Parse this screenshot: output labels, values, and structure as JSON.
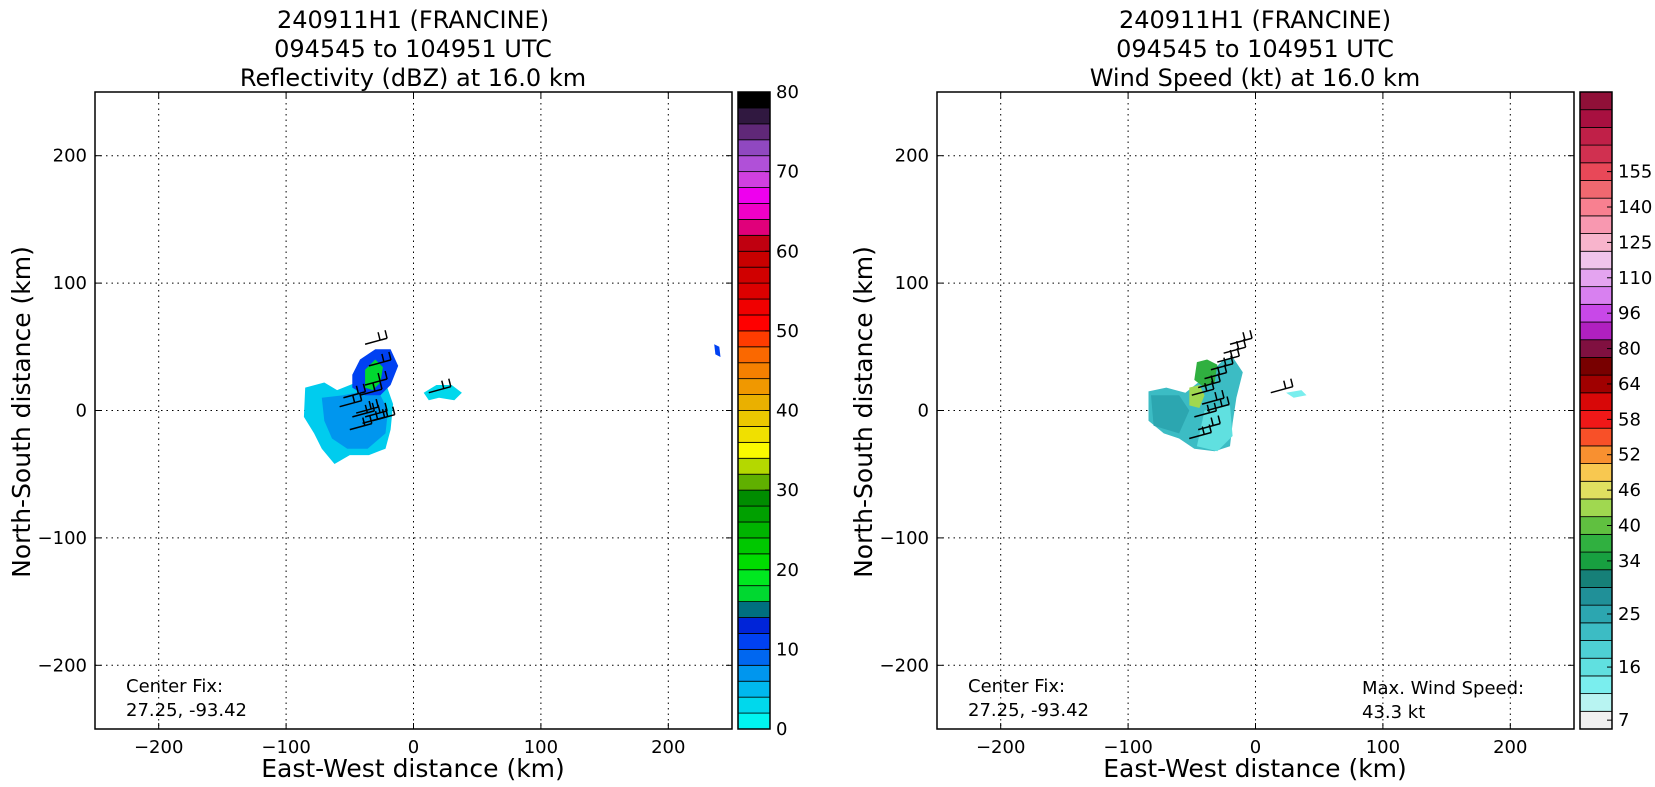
{
  "chart_data": [
    {
      "type": "heatmap",
      "title": [
        "240911H1 (FRANCINE)",
        "094545 to 104951 UTC",
        "Reflectivity (dBZ) at 16.0 km"
      ],
      "xlabel": "East-West distance (km)",
      "ylabel": "North-South distance (km)",
      "xlim": [
        -250,
        250
      ],
      "ylim": [
        -250,
        250
      ],
      "xticks": [
        -200,
        -100,
        0,
        100,
        200
      ],
      "yticks": [
        -200,
        -100,
        0,
        100,
        200
      ],
      "xtick_labels": [
        "−200",
        "−100",
        "0",
        "100",
        "200"
      ],
      "ytick_labels": [
        "−200",
        "−100",
        "0",
        "100",
        "200"
      ],
      "grid": true,
      "center_fix": [
        "Center Fix:",
        "27.25, -93.42"
      ],
      "colorbar": {
        "min": 0,
        "max": 80,
        "ticks": [
          0,
          10,
          20,
          30,
          40,
          50,
          60,
          70,
          80
        ],
        "tick_labels": [
          "0",
          "10",
          "20",
          "30",
          "40",
          "50",
          "60",
          "70",
          "80"
        ],
        "colors": [
          "#00f5f0",
          "#00d8ec",
          "#00b8ee",
          "#0096ee",
          "#0067f0",
          "#0041f2",
          "#0024d8",
          "#006f7f",
          "#00d830",
          "#00e820",
          "#00dc00",
          "#00c800",
          "#00b400",
          "#00a000",
          "#008c00",
          "#60b000",
          "#b4d800",
          "#fafa00",
          "#f0e000",
          "#ecc800",
          "#eab000",
          "#f09800",
          "#f58000",
          "#fa6800",
          "#ff3c00",
          "#ff0000",
          "#f00000",
          "#dc0000",
          "#d00000",
          "#c80000",
          "#c00010",
          "#e0007a",
          "#f000c8",
          "#ee00ee",
          "#d040e0",
          "#b050d8",
          "#9048c0",
          "#602878",
          "#301840",
          "#000000"
        ]
      },
      "regions": [
        {
          "name": "main-echo-outer",
          "color": "#00ccee",
          "points": [
            [
              -85,
              18
            ],
            [
              -70,
              22
            ],
            [
              -60,
              16
            ],
            [
              -45,
              22
            ],
            [
              -30,
              28
            ],
            [
              -22,
              22
            ],
            [
              -16,
              5
            ],
            [
              -18,
              -15
            ],
            [
              -22,
              -30
            ],
            [
              -35,
              -35
            ],
            [
              -50,
              -35
            ],
            [
              -62,
              -42
            ],
            [
              -72,
              -30
            ],
            [
              -78,
              -18
            ],
            [
              -86,
              -5
            ]
          ]
        },
        {
          "name": "main-echo-inner",
          "color": "#0096ee",
          "points": [
            [
              -72,
              10
            ],
            [
              -55,
              12
            ],
            [
              -40,
              15
            ],
            [
              -26,
              12
            ],
            [
              -20,
              0
            ],
            [
              -22,
              -18
            ],
            [
              -36,
              -30
            ],
            [
              -52,
              -30
            ],
            [
              -64,
              -22
            ],
            [
              -70,
              -8
            ]
          ]
        },
        {
          "name": "northern-band",
          "color": "#0041f2",
          "points": [
            [
              -48,
              18
            ],
            [
              -48,
              28
            ],
            [
              -42,
              40
            ],
            [
              -30,
              48
            ],
            [
              -18,
              48
            ],
            [
              -12,
              35
            ],
            [
              -18,
              20
            ],
            [
              -26,
              12
            ],
            [
              -38,
              12
            ]
          ]
        },
        {
          "name": "northern-band-core",
          "color": "#00d830",
          "points": [
            [
              -38,
              18
            ],
            [
              -38,
              32
            ],
            [
              -30,
              40
            ],
            [
              -24,
              34
            ],
            [
              -26,
              22
            ],
            [
              -32,
              16
            ]
          ]
        },
        {
          "name": "eastern-echo",
          "color": "#00d8ec",
          "points": [
            [
              8,
              14
            ],
            [
              18,
              20
            ],
            [
              30,
              20
            ],
            [
              38,
              14
            ],
            [
              32,
              8
            ],
            [
              20,
              10
            ],
            [
              12,
              8
            ]
          ]
        },
        {
          "name": "far-east-echo",
          "color": "#0041f2",
          "points": [
            [
              236,
              52
            ],
            [
              240,
              50
            ],
            [
              241,
              42
            ],
            [
              237,
              44
            ]
          ]
        }
      ],
      "wind_barbs": [
        [
          -38,
          52
        ],
        [
          -35,
          35
        ],
        [
          -38,
          20
        ],
        [
          -42,
          12
        ],
        [
          -55,
          10
        ],
        [
          -58,
          3
        ],
        [
          -48,
          -5
        ],
        [
          -40,
          -10
        ],
        [
          -45,
          -2
        ],
        [
          -38,
          -5
        ],
        [
          -50,
          -15
        ],
        [
          -32,
          -8
        ],
        [
          12,
          14
        ]
      ]
    },
    {
      "type": "heatmap",
      "title": [
        "240911H1 (FRANCINE)",
        "094545 to 104951 UTC",
        "Wind Speed (kt) at 16.0 km"
      ],
      "xlabel": "East-West distance (km)",
      "ylabel": "North-South distance (km)",
      "xlim": [
        -250,
        250
      ],
      "ylim": [
        -250,
        250
      ],
      "xticks": [
        -200,
        -100,
        0,
        100,
        200
      ],
      "yticks": [
        -200,
        -100,
        0,
        100,
        200
      ],
      "xtick_labels": [
        "−200",
        "−100",
        "0",
        "100",
        "200"
      ],
      "ytick_labels": [
        "−200",
        "−100",
        "0",
        "100",
        "200"
      ],
      "grid": true,
      "center_fix": [
        "Center Fix:",
        "27.25, -93.42"
      ],
      "max_wind": [
        "Max. Wind Speed:",
        "43.3 kt"
      ],
      "colorbar": {
        "levels": [
          7,
          10,
          13,
          16,
          19,
          22,
          25,
          28,
          31,
          34,
          37,
          40,
          43,
          46,
          49,
          52,
          55,
          58,
          61,
          64,
          72,
          80,
          88,
          96,
          103,
          110,
          118,
          125,
          133,
          140,
          148,
          155,
          160
        ],
        "ticks": [
          7,
          16,
          25,
          34,
          40,
          46,
          52,
          58,
          64,
          80,
          96,
          110,
          125,
          140,
          155
        ],
        "tick_labels": [
          "7",
          "16",
          "25",
          "34",
          "40",
          "46",
          "52",
          "58",
          "64",
          "80",
          "96",
          "110",
          "125",
          "140",
          "155"
        ],
        "colors": [
          "#f0f0f0",
          "#b8f4f2",
          "#7aeeee",
          "#60e0e0",
          "#4ed0d4",
          "#3cbcc4",
          "#2ca6b0",
          "#209098",
          "#168078",
          "#18a040",
          "#30b040",
          "#60c040",
          "#a0d850",
          "#e0e060",
          "#f8c850",
          "#f89030",
          "#f85028",
          "#f01818",
          "#d80808",
          "#a00000",
          "#780000",
          "#801040",
          "#b020c0",
          "#c848e8",
          "#d880f0",
          "#e4a4f0",
          "#f0c4ec",
          "#f8b4cc",
          "#f898b0",
          "#f88090",
          "#f06870",
          "#e84858",
          "#d03050",
          "#c02048",
          "#a81040",
          "#901038"
        ]
      },
      "regions": [
        {
          "name": "main-wind-outer",
          "color": "#3cbcc4",
          "points": [
            [
              -84,
              15
            ],
            [
              -70,
              18
            ],
            [
              -55,
              14
            ],
            [
              -45,
              22
            ],
            [
              -35,
              30
            ],
            [
              -25,
              40
            ],
            [
              -18,
              42
            ],
            [
              -10,
              30
            ],
            [
              -15,
              10
            ],
            [
              -18,
              -10
            ],
            [
              -20,
              -28
            ],
            [
              -32,
              -32
            ],
            [
              -48,
              -30
            ],
            [
              -60,
              -22
            ],
            [
              -72,
              -18
            ],
            [
              -84,
              -8
            ]
          ]
        },
        {
          "name": "main-wind-light",
          "color": "#60e0e0",
          "points": [
            [
              -40,
              0
            ],
            [
              -20,
              4
            ],
            [
              -18,
              -20
            ],
            [
              -30,
              -32
            ],
            [
              -46,
              -28
            ]
          ]
        },
        {
          "name": "main-wind-dark",
          "color": "#2ca6b0",
          "points": [
            [
              -82,
              12
            ],
            [
              -60,
              12
            ],
            [
              -52,
              0
            ],
            [
              -60,
              -18
            ],
            [
              -80,
              -12
            ]
          ]
        },
        {
          "name": "core-green",
          "color": "#30b040",
          "points": [
            [
              -46,
              38
            ],
            [
              -38,
              40
            ],
            [
              -30,
              36
            ],
            [
              -32,
              22
            ],
            [
              -40,
              18
            ],
            [
              -48,
              24
            ]
          ]
        },
        {
          "name": "core-yellow",
          "color": "#a0d850",
          "points": [
            [
              -52,
              18
            ],
            [
              -44,
              20
            ],
            [
              -40,
              12
            ],
            [
              -44,
              2
            ],
            [
              -52,
              4
            ]
          ]
        },
        {
          "name": "eastern-wind",
          "color": "#7aeeee",
          "points": [
            [
              24,
              14
            ],
            [
              36,
              16
            ],
            [
              40,
              12
            ],
            [
              30,
              10
            ]
          ]
        }
      ],
      "wind_barbs": [
        [
          -20,
          52
        ],
        [
          -25,
          45
        ],
        [
          -30,
          38
        ],
        [
          -35,
          32
        ],
        [
          -40,
          25
        ],
        [
          -45,
          18
        ],
        [
          -50,
          12
        ],
        [
          -42,
          5
        ],
        [
          -38,
          0
        ],
        [
          -48,
          -5
        ],
        [
          -45,
          -15
        ],
        [
          -52,
          -22
        ],
        [
          12,
          14
        ]
      ]
    }
  ]
}
